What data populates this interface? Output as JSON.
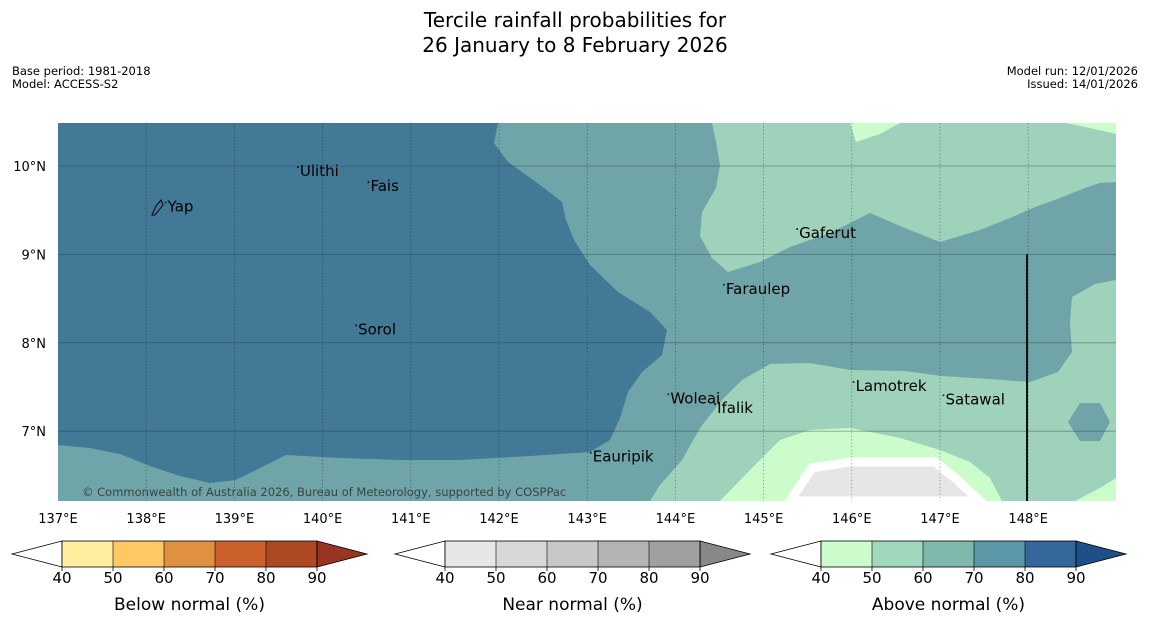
{
  "title": {
    "line1": "Tercile rainfall probabilities for",
    "line2": "26 January to 8 February 2026"
  },
  "meta": {
    "base_period": "Base period: 1981-2018",
    "model": "Model: ACCESS-S2",
    "model_run": "Model run: 12/01/2026",
    "issued": "Issued: 14/01/2026"
  },
  "map": {
    "copyright": "© Commonwealth of Australia 2026, Bureau of Meteorology, supported by COSPPac",
    "lat_labels": [
      "10°N",
      "9°N",
      "8°N",
      "7°N"
    ],
    "lon_labels": [
      "137°E",
      "138°E",
      "139°E",
      "140°E",
      "141°E",
      "142°E",
      "143°E",
      "144°E",
      "145°E",
      "146°E",
      "147°E",
      "148°E"
    ],
    "places": [
      {
        "name": "Yap",
        "lon": 138.22,
        "lat": 9.53
      },
      {
        "name": "Ulithi",
        "lon": 139.72,
        "lat": 9.93
      },
      {
        "name": "Fais",
        "lon": 140.52,
        "lat": 9.76
      },
      {
        "name": "Sorol",
        "lon": 140.38,
        "lat": 8.14
      },
      {
        "name": "Gaferut",
        "lon": 145.38,
        "lat": 9.23
      },
      {
        "name": "Faraulep",
        "lon": 144.55,
        "lat": 8.6
      },
      {
        "name": "Woleai",
        "lon": 143.92,
        "lat": 7.36
      },
      {
        "name": "Ifalik",
        "lon": 144.45,
        "lat": 7.25
      },
      {
        "name": "Lamotrek",
        "lon": 146.02,
        "lat": 7.5
      },
      {
        "name": "Satawal",
        "lon": 147.04,
        "lat": 7.35
      },
      {
        "name": "Eauripik",
        "lon": 143.04,
        "lat": 6.7
      }
    ]
  },
  "colorbars": [
    {
      "label": "Below normal (%)",
      "ticks": [
        "40",
        "50",
        "60",
        "70",
        "80",
        "90"
      ],
      "colors": [
        "#ffffff",
        "#ffeda0",
        "#fec863",
        "#e0913f",
        "#cc612d",
        "#ae4823",
        "#973522"
      ]
    },
    {
      "label": "Near normal (%)",
      "ticks": [
        "40",
        "50",
        "60",
        "70",
        "80",
        "90"
      ],
      "colors": [
        "#ffffff",
        "#e6e6e6",
        "#d8d8d8",
        "#c8c8c8",
        "#b4b4b4",
        "#a0a0a0",
        "#888888"
      ]
    },
    {
      "label": "Above normal (%)",
      "ticks": [
        "40",
        "50",
        "60",
        "70",
        "80",
        "90"
      ],
      "colors": [
        "#ffffff",
        "#ccfccc",
        "#a0d8bb",
        "#7fb7ad",
        "#5b97a7",
        "#35679a",
        "#1f4f89"
      ]
    }
  ],
  "colors": {
    "dark_blue_region": "#427996",
    "teal_region": "#6fa5a8",
    "light_green_region": "#9fd2ba",
    "pale_green_region": "#ccfccc",
    "grey_region": "#e6e6e6"
  }
}
